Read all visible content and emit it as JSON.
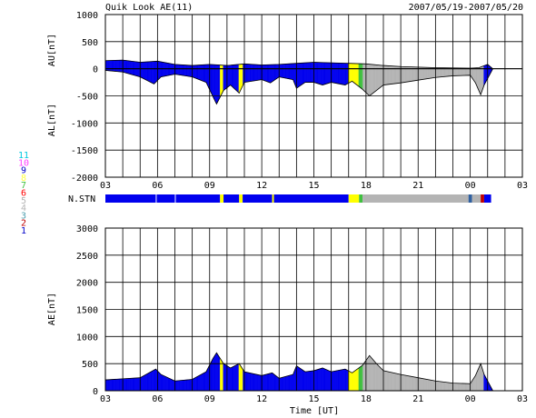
{
  "header": {
    "title": "Quik Look AE(11)",
    "date_range": "2007/05/19-2007/05/20"
  },
  "station_key": {
    "title": "N.STN",
    "numbers": [
      "11",
      "10",
      "9",
      "8",
      "7",
      "6",
      "5",
      "4",
      "3",
      "2",
      "1"
    ],
    "colors": [
      "#00c8e0",
      "#ff40ff",
      "#0000c8",
      "#ffff40",
      "#40c040",
      "#ff0000",
      "#b4b4b4",
      "#b4b4b4",
      "#50a0b0",
      "#c00000",
      "#0000c8"
    ]
  },
  "station_bar": [
    {
      "from": 3.0,
      "to": 5.9,
      "color": "#0000ee"
    },
    {
      "from": 5.95,
      "to": 7.0,
      "color": "#0000ee"
    },
    {
      "from": 7.05,
      "to": 9.6,
      "color": "#0000ee"
    },
    {
      "from": 9.6,
      "to": 9.8,
      "color": "#ffff00"
    },
    {
      "from": 9.8,
      "to": 10.7,
      "color": "#0000ee"
    },
    {
      "from": 10.7,
      "to": 10.9,
      "color": "#ffff00"
    },
    {
      "from": 10.9,
      "to": 12.6,
      "color": "#0000ee"
    },
    {
      "from": 12.6,
      "to": 12.7,
      "color": "#ffff00"
    },
    {
      "from": 12.7,
      "to": 17.0,
      "color": "#0000ee"
    },
    {
      "from": 17.0,
      "to": 17.6,
      "color": "#ffff00"
    },
    {
      "from": 17.6,
      "to": 17.8,
      "color": "#40c040"
    },
    {
      "from": 17.8,
      "to": 23.9,
      "color": "#b4b4b4"
    },
    {
      "from": 23.9,
      "to": 24.1,
      "color": "#3060a0"
    },
    {
      "from": 24.1,
      "to": 24.6,
      "color": "#b4b4b4"
    },
    {
      "from": 24.6,
      "to": 24.8,
      "color": "#c00000"
    },
    {
      "from": 24.8,
      "to": 25.2,
      "color": "#0000ee"
    }
  ],
  "chart_data": [
    {
      "type": "area",
      "name": "AU/AL",
      "ylabel_upper": "AU[nT]",
      "ylabel_lower": "AL[nT]",
      "ylim": [
        -2000,
        1000
      ],
      "yticks": [
        "1000",
        "500",
        "0",
        "-500",
        "-1000",
        "-1500",
        "-2000"
      ],
      "xticks": [
        "03",
        "06",
        "09",
        "12",
        "15",
        "18",
        "21",
        "00",
        "03"
      ],
      "x_range_hours": [
        3,
        27
      ],
      "au": [
        [
          3,
          150
        ],
        [
          4,
          160
        ],
        [
          5,
          120
        ],
        [
          6,
          140
        ],
        [
          7,
          80
        ],
        [
          8,
          60
        ],
        [
          9,
          80
        ],
        [
          10,
          60
        ],
        [
          11,
          90
        ],
        [
          12,
          70
        ],
        [
          13,
          80
        ],
        [
          14,
          100
        ],
        [
          15,
          120
        ],
        [
          16,
          110
        ],
        [
          17,
          100
        ],
        [
          18,
          90
        ],
        [
          19,
          60
        ],
        [
          20,
          40
        ],
        [
          21,
          30
        ],
        [
          22,
          20
        ],
        [
          23,
          15
        ],
        [
          24,
          10
        ],
        [
          24.5,
          20
        ],
        [
          25,
          80
        ],
        [
          25.3,
          0
        ]
      ],
      "al": [
        [
          3,
          -30
        ],
        [
          4,
          -60
        ],
        [
          5,
          -150
        ],
        [
          5.8,
          -280
        ],
        [
          6.2,
          -150
        ],
        [
          7,
          -100
        ],
        [
          8,
          -150
        ],
        [
          8.8,
          -250
        ],
        [
          9.2,
          -520
        ],
        [
          9.4,
          -650
        ],
        [
          9.8,
          -400
        ],
        [
          10.2,
          -300
        ],
        [
          10.7,
          -450
        ],
        [
          11,
          -250
        ],
        [
          12,
          -200
        ],
        [
          12.5,
          -260
        ],
        [
          13,
          -150
        ],
        [
          13.8,
          -200
        ],
        [
          14,
          -360
        ],
        [
          14.5,
          -250
        ],
        [
          15,
          -250
        ],
        [
          15.5,
          -300
        ],
        [
          16,
          -250
        ],
        [
          16.8,
          -300
        ],
        [
          17.2,
          -230
        ],
        [
          17.8,
          -380
        ],
        [
          18.2,
          -500
        ],
        [
          18.6,
          -400
        ],
        [
          19,
          -300
        ],
        [
          20,
          -260
        ],
        [
          21,
          -210
        ],
        [
          22,
          -160
        ],
        [
          23,
          -130
        ],
        [
          24,
          -120
        ],
        [
          24.3,
          -260
        ],
        [
          24.6,
          -480
        ],
        [
          24.8,
          -300
        ],
        [
          25.3,
          0
        ]
      ],
      "segments": [
        {
          "from": 3.0,
          "to": 9.6,
          "color": "#0000ee"
        },
        {
          "from": 9.6,
          "to": 9.8,
          "color": "#ffff00"
        },
        {
          "from": 9.8,
          "to": 10.7,
          "color": "#0000ee"
        },
        {
          "from": 10.7,
          "to": 10.9,
          "color": "#ffff00"
        },
        {
          "from": 10.9,
          "to": 17.0,
          "color": "#0000ee"
        },
        {
          "from": 17.0,
          "to": 17.6,
          "color": "#ffff00"
        },
        {
          "from": 17.6,
          "to": 17.8,
          "color": "#40c040"
        },
        {
          "from": 17.8,
          "to": 24.8,
          "color": "#b4b4b4"
        },
        {
          "from": 24.8,
          "to": 25.3,
          "color": "#0000ee"
        }
      ]
    },
    {
      "type": "area",
      "name": "AE",
      "ylabel": "AE[nT]",
      "xlabel": "Time [UT]",
      "ylim": [
        0,
        3000
      ],
      "yticks": [
        "3000",
        "2500",
        "2000",
        "1500",
        "1000",
        "500",
        "0"
      ],
      "xticks": [
        "03",
        "06",
        "09",
        "12",
        "15",
        "18",
        "21",
        "00",
        "03"
      ],
      "x_range_hours": [
        3,
        27
      ],
      "ae": [
        [
          3,
          200
        ],
        [
          4,
          220
        ],
        [
          5,
          240
        ],
        [
          5.9,
          400
        ],
        [
          6.2,
          300
        ],
        [
          7,
          180
        ],
        [
          8,
          210
        ],
        [
          8.8,
          350
        ],
        [
          9.2,
          600
        ],
        [
          9.4,
          700
        ],
        [
          9.8,
          500
        ],
        [
          10.2,
          420
        ],
        [
          10.7,
          500
        ],
        [
          11,
          350
        ],
        [
          12,
          280
        ],
        [
          12.6,
          330
        ],
        [
          13,
          230
        ],
        [
          13.8,
          300
        ],
        [
          14,
          460
        ],
        [
          14.5,
          350
        ],
        [
          15,
          370
        ],
        [
          15.5,
          420
        ],
        [
          16,
          350
        ],
        [
          16.8,
          400
        ],
        [
          17.2,
          330
        ],
        [
          17.8,
          470
        ],
        [
          18.2,
          650
        ],
        [
          18.6,
          500
        ],
        [
          19,
          370
        ],
        [
          20,
          300
        ],
        [
          21,
          240
        ],
        [
          22,
          180
        ],
        [
          23,
          140
        ],
        [
          24,
          130
        ],
        [
          24.3,
          280
        ],
        [
          24.6,
          500
        ],
        [
          24.8,
          300
        ],
        [
          25.3,
          0
        ]
      ],
      "segments": [
        {
          "from": 3.0,
          "to": 9.6,
          "color": "#0000ee"
        },
        {
          "from": 9.6,
          "to": 9.8,
          "color": "#ffff00"
        },
        {
          "from": 9.8,
          "to": 10.7,
          "color": "#0000ee"
        },
        {
          "from": 10.7,
          "to": 10.9,
          "color": "#ffff00"
        },
        {
          "from": 10.9,
          "to": 17.0,
          "color": "#0000ee"
        },
        {
          "from": 17.0,
          "to": 17.6,
          "color": "#ffff00"
        },
        {
          "from": 17.6,
          "to": 17.8,
          "color": "#40c040"
        },
        {
          "from": 17.8,
          "to": 24.8,
          "color": "#b4b4b4"
        },
        {
          "from": 24.8,
          "to": 25.3,
          "color": "#0000ee"
        }
      ]
    }
  ]
}
